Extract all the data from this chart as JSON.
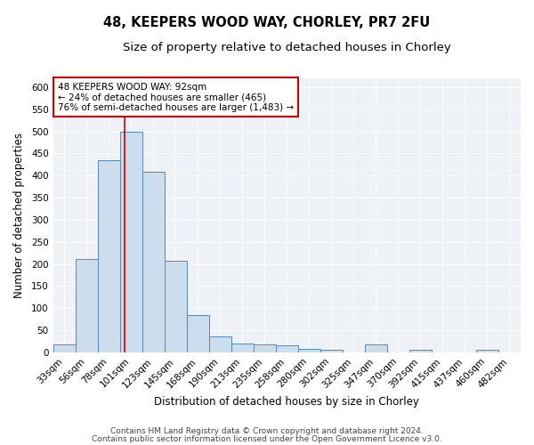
{
  "title": "48, KEEPERS WOOD WAY, CHORLEY, PR7 2FU",
  "subtitle": "Size of property relative to detached houses in Chorley",
  "xlabel": "Distribution of detached houses by size in Chorley",
  "ylabel": "Number of detached properties",
  "footnote1": "Contains HM Land Registry data © Crown copyright and database right 2024.",
  "footnote2": "Contains public sector information licensed under the Open Government Licence v3.0.",
  "bin_labels": [
    "33sqm",
    "56sqm",
    "78sqm",
    "101sqm",
    "123sqm",
    "145sqm",
    "168sqm",
    "190sqm",
    "213sqm",
    "235sqm",
    "258sqm",
    "280sqm",
    "302sqm",
    "325sqm",
    "347sqm",
    "370sqm",
    "392sqm",
    "415sqm",
    "437sqm",
    "460sqm",
    "482sqm"
  ],
  "bar_heights": [
    18,
    212,
    435,
    500,
    408,
    208,
    85,
    35,
    20,
    18,
    15,
    8,
    6,
    0,
    18,
    0,
    5,
    0,
    0,
    6,
    0
  ],
  "bar_color": "#ccdded",
  "bar_edge_color": "#5588bb",
  "red_line_color": "#cc0000",
  "red_line_x": 2.72,
  "annotation_text": "48 KEEPERS WOOD WAY: 92sqm\n← 24% of detached houses are smaller (465)\n76% of semi-detached houses are larger (1,483) →",
  "annotation_box_facecolor": "#ffffff",
  "annotation_box_edgecolor": "#cc0000",
  "ylim": [
    0,
    620
  ],
  "yticks": [
    0,
    50,
    100,
    150,
    200,
    250,
    300,
    350,
    400,
    450,
    500,
    550,
    600
  ],
  "background_color": "#ffffff",
  "plot_bg_color": "#eef2f7",
  "grid_color": "#ffffff",
  "title_fontsize": 10.5,
  "subtitle_fontsize": 9.5,
  "axis_label_fontsize": 8.5,
  "tick_fontsize": 7.5,
  "annotation_fontsize": 7.5,
  "footnote_fontsize": 6.5
}
